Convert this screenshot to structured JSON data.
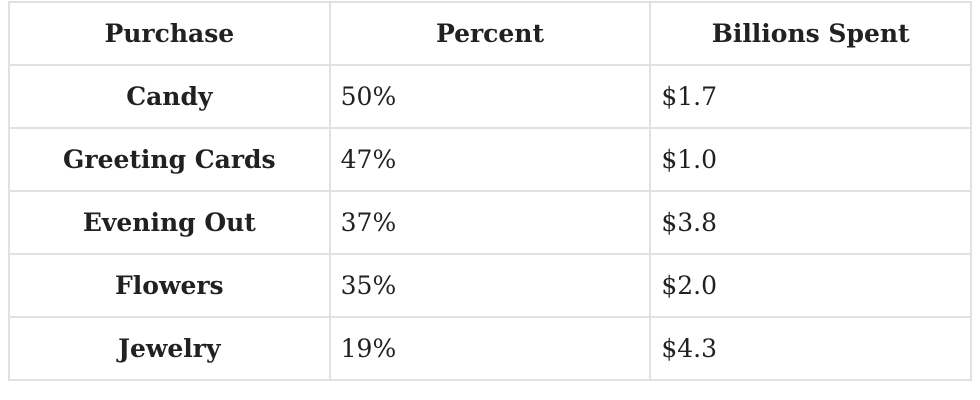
{
  "table": {
    "header": [
      "Purchase",
      "Percent",
      "Billions Spent"
    ],
    "rows": [
      [
        "Candy",
        "50%",
        "$1.7"
      ],
      [
        "Greeting Cards",
        "47%",
        "$1.0"
      ],
      [
        "Evening Out",
        "37%",
        "$3.8"
      ],
      [
        "Flowers",
        "35%",
        "$2.0"
      ],
      [
        "Jewelry",
        "19%",
        "$4.3"
      ]
    ]
  },
  "chart_data": {
    "type": "table",
    "title": "",
    "columns": [
      "Purchase",
      "Percent",
      "Billions Spent"
    ],
    "rows": [
      {
        "purchase": "Candy",
        "percent": 50,
        "billions_spent": 1.7
      },
      {
        "purchase": "Greeting Cards",
        "percent": 47,
        "billions_spent": 1.0
      },
      {
        "purchase": "Evening Out",
        "percent": 37,
        "billions_spent": 3.8
      },
      {
        "purchase": "Flowers",
        "percent": 35,
        "billions_spent": 2.0
      },
      {
        "purchase": "Jewelry",
        "percent": 19,
        "billions_spent": 4.3
      }
    ],
    "units": {
      "percent": "%",
      "billions_spent": "$ billions"
    }
  },
  "colors": {
    "border": "#e1e1e1",
    "text": "#212121",
    "background": "#ffffff"
  }
}
